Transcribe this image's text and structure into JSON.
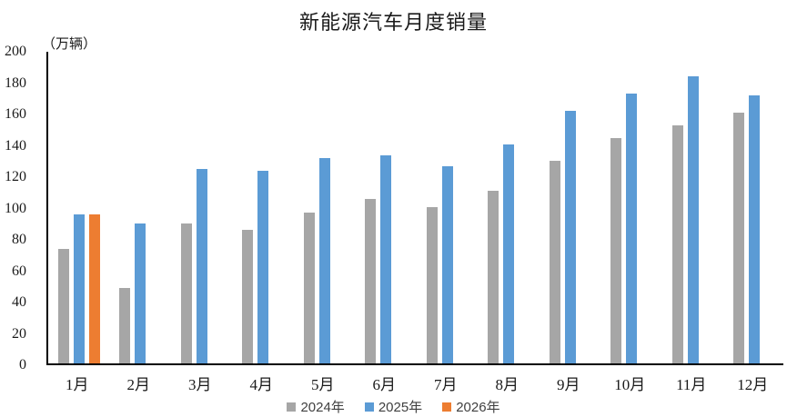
{
  "title": "新能源汽车月度销量",
  "y_axis_unit": "（万辆）",
  "colors": {
    "series_2024": "#A6A6A6",
    "series_2025": "#5B9BD5",
    "series_2026": "#ED7D31",
    "axis_line": "#000000",
    "text": "#1a1a1a",
    "legend_text": "#404040",
    "background": "#ffffff"
  },
  "chart_data": {
    "type": "bar",
    "title": "新能源汽车月度销量",
    "xlabel": "",
    "ylabel": "（万辆）",
    "categories": [
      "1月",
      "2月",
      "3月",
      "4月",
      "5月",
      "6月",
      "7月",
      "8月",
      "9月",
      "10月",
      "11月",
      "12月"
    ],
    "series": [
      {
        "name": "2024年",
        "color": "#A6A6A6",
        "values": [
          73,
          48,
          89,
          85,
          96,
          105,
          100,
          110,
          129,
          144,
          152,
          160
        ]
      },
      {
        "name": "2025年",
        "color": "#5B9BD5",
        "values": [
          95,
          89,
          124,
          123,
          131,
          133,
          126,
          140,
          161,
          172,
          183,
          171
        ]
      },
      {
        "name": "2026年",
        "color": "#ED7D31",
        "values": [
          95,
          null,
          null,
          null,
          null,
          null,
          null,
          null,
          null,
          null,
          null,
          null
        ]
      }
    ],
    "ylim": [
      0,
      200
    ],
    "yticks": [
      0,
      20,
      40,
      60,
      80,
      100,
      120,
      140,
      160,
      180,
      200
    ],
    "grid": false,
    "legend_position": "bottom"
  }
}
